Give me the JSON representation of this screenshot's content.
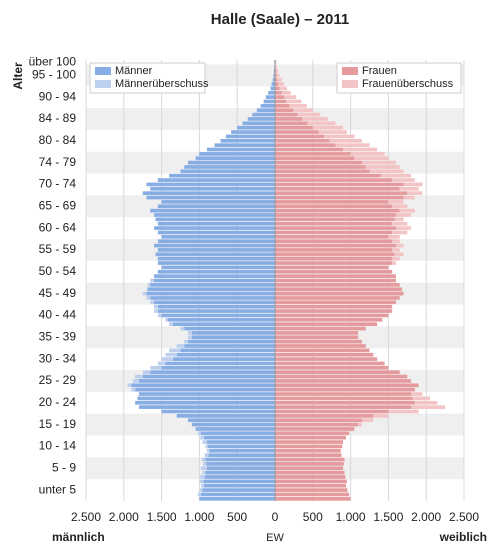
{
  "chart_data": {
    "type": "population-pyramid",
    "title": "Halle (Saale) – 2011",
    "y_label": "Alter",
    "x_label_left": "männlich",
    "x_label_center": "EW",
    "x_label_right": "weiblich",
    "categories": [
      null,
      null,
      "unter 5",
      null,
      null,
      null,
      null,
      "5 - 9",
      null,
      null,
      null,
      null,
      "10 - 14",
      null,
      null,
      null,
      null,
      "15 - 19",
      null,
      null,
      null,
      null,
      "20 - 24",
      null,
      null,
      null,
      null,
      "25 - 29",
      null,
      null,
      null,
      null,
      "30 - 34",
      null,
      null,
      null,
      null,
      "35 - 39",
      null,
      null,
      null,
      null,
      "40 - 44",
      null,
      null,
      null,
      null,
      "45 - 49",
      null,
      null,
      null,
      null,
      "50 - 54",
      null,
      null,
      null,
      null,
      "55 - 59",
      null,
      null,
      null,
      null,
      "60 - 64",
      null,
      null,
      null,
      null,
      "65 - 69",
      null,
      null,
      null,
      null,
      "70 - 74",
      null,
      null,
      null,
      null,
      "74 - 79",
      null,
      null,
      null,
      null,
      "80 - 84",
      null,
      null,
      null,
      null,
      "84 - 89",
      null,
      null,
      null,
      null,
      "90 - 94",
      null,
      null,
      null,
      null,
      "95 - 100",
      null,
      null,
      "über 100"
    ],
    "series": [
      {
        "name": "Männer",
        "color": "#86ade4",
        "values": [
          1000,
          980,
          960,
          940,
          950,
          930,
          920,
          900,
          910,
          920,
          880,
          870,
          890,
          900,
          940,
          980,
          1050,
          1100,
          1150,
          1300,
          1500,
          1800,
          1850,
          1820,
          1800,
          1850,
          1900,
          1800,
          1750,
          1650,
          1500,
          1450,
          1350,
          1300,
          1250,
          1200,
          1150,
          1100,
          1100,
          1200,
          1350,
          1420,
          1500,
          1550,
          1550,
          1600,
          1650,
          1700,
          1680,
          1650,
          1600,
          1600,
          1550,
          1500,
          1550,
          1550,
          1580,
          1550,
          1600,
          1550,
          1500,
          1550,
          1600,
          1550,
          1580,
          1600,
          1650,
          1550,
          1500,
          1700,
          1750,
          1650,
          1700,
          1550,
          1400,
          1250,
          1200,
          1150,
          1050,
          1000,
          900,
          800,
          720,
          650,
          580,
          500,
          430,
          360,
          300,
          240,
          190,
          150,
          120,
          90,
          60,
          45,
          30,
          20,
          15,
          10,
          10
        ]
      },
      {
        "name": "Männerüberschuss",
        "color": "#bccfee",
        "values": [
          0,
          40,
          30,
          40,
          50,
          60,
          40,
          80,
          40,
          50,
          50,
          30,
          30,
          60,
          50,
          40,
          0,
          0,
          0,
          0,
          0,
          0,
          0,
          0,
          0,
          50,
          50,
          80,
          100,
          100,
          150,
          100,
          150,
          150,
          150,
          100,
          50,
          50,
          50,
          50,
          50,
          30,
          50,
          50,
          50,
          50,
          50,
          50,
          20,
          30,
          50,
          0,
          0,
          0,
          0,
          0,
          0,
          0,
          0,
          0,
          0,
          0,
          0,
          0,
          0,
          0,
          0,
          0,
          0,
          0,
          0,
          0,
          0,
          0,
          0,
          0,
          0,
          0,
          0,
          0,
          0,
          0,
          0,
          0,
          0,
          0,
          0,
          0,
          0,
          0,
          0,
          0,
          0,
          0,
          0,
          0,
          0,
          0,
          0,
          0,
          0
        ]
      },
      {
        "name": "Frauen",
        "color": "#e59b9d",
        "values": [
          1000,
          980,
          960,
          940,
          950,
          930,
          920,
          900,
          910,
          920,
          880,
          870,
          890,
          900,
          940,
          980,
          1050,
          1100,
          1150,
          1300,
          1500,
          1800,
          1850,
          1820,
          1800,
          1850,
          1900,
          1800,
          1750,
          1650,
          1500,
          1450,
          1350,
          1300,
          1250,
          1200,
          1150,
          1100,
          1100,
          1200,
          1350,
          1420,
          1500,
          1550,
          1550,
          1600,
          1650,
          1700,
          1680,
          1650,
          1600,
          1600,
          1550,
          1500,
          1550,
          1550,
          1580,
          1550,
          1600,
          1550,
          1500,
          1550,
          1600,
          1550,
          1580,
          1600,
          1650,
          1550,
          1500,
          1700,
          1750,
          1650,
          1700,
          1550,
          1400,
          1250,
          1200,
          1150,
          1050,
          1000,
          900,
          800,
          720,
          650,
          580,
          500,
          430,
          360,
          300,
          240,
          190,
          150,
          120,
          90,
          60,
          45,
          30,
          20,
          15,
          10,
          10
        ]
      },
      {
        "name": "Frauenüberschuss",
        "color": "#f2c4c5",
        "values": [
          0,
          0,
          0,
          0,
          0,
          0,
          0,
          0,
          0,
          0,
          0,
          0,
          0,
          0,
          0,
          0,
          0,
          50,
          150,
          200,
          400,
          450,
          300,
          230,
          150,
          0,
          0,
          0,
          0,
          0,
          0,
          0,
          0,
          0,
          0,
          0,
          0,
          0,
          0,
          0,
          0,
          0,
          0,
          0,
          0,
          0,
          0,
          0,
          0,
          0,
          0,
          0,
          0,
          0,
          50,
          100,
          120,
          100,
          100,
          100,
          150,
          200,
          200,
          200,
          120,
          200,
          200,
          200,
          200,
          150,
          200,
          250,
          250,
          300,
          400,
          450,
          450,
          450,
          450,
          450,
          450,
          450,
          430,
          400,
          370,
          400,
          370,
          340,
          300,
          260,
          230,
          200,
          160,
          120,
          100,
          75,
          60,
          40,
          25,
          15,
          10
        ]
      }
    ],
    "xlim": [
      -2500,
      2500
    ],
    "xticks": [
      {
        "value": -2500,
        "label": "2.500"
      },
      {
        "value": -2000,
        "label": "2.000"
      },
      {
        "value": -1500,
        "label": "1.500"
      },
      {
        "value": -1000,
        "label": "1.000"
      },
      {
        "value": -500,
        "label": "500"
      },
      0,
      500,
      {
        "value": 1000,
        "label": "1.000"
      },
      {
        "value": 1500,
        "label": "1.500"
      },
      {
        "value": 2000,
        "label": "2.000"
      },
      {
        "value": 2500,
        "label": "2.500"
      }
    ],
    "grid": true
  }
}
